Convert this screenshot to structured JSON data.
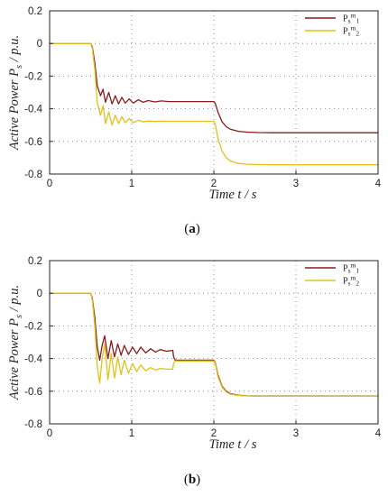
{
  "chart_data": [
    {
      "type": "line",
      "panel_label_text": "a",
      "xlabel": "Time t / s",
      "ylabel_main": "Active Power P",
      "ylabel_sub": "s",
      "ylabel_tail": " / p.u.",
      "xlim": [
        0,
        4
      ],
      "ylim": [
        -0.8,
        0.2
      ],
      "xticks": [
        0,
        1,
        2,
        3,
        4
      ],
      "yticks": [
        0.2,
        0,
        -0.2,
        -0.4,
        -0.6,
        -0.8
      ],
      "xtick_labels": [
        "0",
        "1",
        "2",
        "3",
        "4"
      ],
      "ytick_labels": [
        "0.2",
        "0",
        "-0.2",
        "-0.4",
        "-0.6",
        "-0.8"
      ],
      "grid": "dotted",
      "legend": "top-right",
      "series": [
        {
          "name": "Psm1",
          "legend": {
            "base": "P",
            "sub": "s",
            "sup": "m",
            "idx": "1"
          },
          "color": "#8b1a1a",
          "x": [
            0,
            0.5,
            0.52,
            0.55,
            0.58,
            0.62,
            0.65,
            0.68,
            0.72,
            0.76,
            0.8,
            0.84,
            0.88,
            0.92,
            0.97,
            1.02,
            1.08,
            1.14,
            1.2,
            1.28,
            1.36,
            1.45,
            1.55,
            1.7,
            1.85,
            2.0,
            2.02,
            2.05,
            2.1,
            2.15,
            2.2,
            2.3,
            2.4,
            2.55,
            2.7,
            3.0,
            3.5,
            4.0
          ],
          "y": [
            0,
            0,
            -0.02,
            -0.12,
            -0.26,
            -0.32,
            -0.28,
            -0.36,
            -0.3,
            -0.37,
            -0.32,
            -0.37,
            -0.33,
            -0.365,
            -0.34,
            -0.365,
            -0.345,
            -0.36,
            -0.35,
            -0.358,
            -0.352,
            -0.356,
            -0.356,
            -0.356,
            -0.356,
            -0.356,
            -0.37,
            -0.42,
            -0.48,
            -0.51,
            -0.525,
            -0.538,
            -0.543,
            -0.546,
            -0.547,
            -0.547,
            -0.547,
            -0.547
          ]
        },
        {
          "name": "Psm2",
          "legend": {
            "base": "P",
            "sub": "s",
            "sup": "m",
            "idx": "2"
          },
          "color": "#e0c21a",
          "x": [
            0,
            0.5,
            0.52,
            0.55,
            0.58,
            0.62,
            0.65,
            0.68,
            0.72,
            0.76,
            0.8,
            0.84,
            0.88,
            0.92,
            0.97,
            1.02,
            1.08,
            1.14,
            1.2,
            1.28,
            1.36,
            1.45,
            1.55,
            1.7,
            1.85,
            2.0,
            2.02,
            2.05,
            2.1,
            2.15,
            2.2,
            2.3,
            2.4,
            2.55,
            2.7,
            3.0,
            3.5,
            4.0
          ],
          "y": [
            0,
            0,
            -0.03,
            -0.16,
            -0.36,
            -0.44,
            -0.38,
            -0.49,
            -0.42,
            -0.5,
            -0.44,
            -0.49,
            -0.45,
            -0.485,
            -0.46,
            -0.485,
            -0.47,
            -0.48,
            -0.475,
            -0.478,
            -0.476,
            -0.477,
            -0.477,
            -0.477,
            -0.477,
            -0.477,
            -0.5,
            -0.58,
            -0.66,
            -0.7,
            -0.72,
            -0.735,
            -0.74,
            -0.742,
            -0.743,
            -0.743,
            -0.743,
            -0.743
          ]
        }
      ]
    },
    {
      "type": "line",
      "panel_label_text": "b",
      "xlabel": "Time t / s",
      "ylabel_main": "Active Power P",
      "ylabel_sub": "s",
      "ylabel_tail": " / p.u.",
      "xlim": [
        0,
        4
      ],
      "ylim": [
        -0.8,
        0.2
      ],
      "xticks": [
        0,
        1,
        2,
        3,
        4
      ],
      "yticks": [
        0.2,
        0,
        -0.2,
        -0.4,
        -0.6,
        -0.8
      ],
      "xtick_labels": [
        "0",
        "1",
        "2",
        "3",
        "4"
      ],
      "ytick_labels": [
        "0.2",
        "0",
        "-0.2",
        "-0.4",
        "-0.6",
        "-0.8"
      ],
      "grid": "dotted",
      "legend": "top-right",
      "series": [
        {
          "name": "Psm1",
          "legend": {
            "base": "P",
            "sub": "s",
            "sup": "m",
            "idx": "1"
          },
          "color": "#8b1a1a",
          "x": [
            0,
            0.5,
            0.52,
            0.55,
            0.58,
            0.61,
            0.64,
            0.67,
            0.71,
            0.75,
            0.79,
            0.83,
            0.87,
            0.91,
            0.96,
            1.01,
            1.06,
            1.11,
            1.17,
            1.23,
            1.29,
            1.35,
            1.42,
            1.5,
            1.51,
            1.53,
            1.6,
            1.7,
            1.8,
            1.9,
            2.0,
            2.02,
            2.05,
            2.1,
            2.15,
            2.2,
            2.3,
            2.4,
            2.55,
            2.7,
            3.0,
            3.5,
            4.0
          ],
          "y": [
            0,
            0,
            -0.03,
            -0.15,
            -0.33,
            -0.41,
            -0.32,
            -0.26,
            -0.4,
            -0.29,
            -0.39,
            -0.31,
            -0.38,
            -0.32,
            -0.375,
            -0.33,
            -0.37,
            -0.33,
            -0.365,
            -0.34,
            -0.36,
            -0.345,
            -0.355,
            -0.35,
            -0.39,
            -0.41,
            -0.41,
            -0.41,
            -0.41,
            -0.41,
            -0.41,
            -0.43,
            -0.5,
            -0.57,
            -0.6,
            -0.615,
            -0.625,
            -0.628,
            -0.63,
            -0.63,
            -0.63,
            -0.63,
            -0.63
          ]
        },
        {
          "name": "Psm2",
          "legend": {
            "base": "P",
            "sub": "s",
            "sup": "m",
            "idx": "2"
          },
          "color": "#e0c21a",
          "x": [
            0,
            0.5,
            0.52,
            0.55,
            0.58,
            0.61,
            0.64,
            0.67,
            0.71,
            0.75,
            0.79,
            0.83,
            0.87,
            0.91,
            0.96,
            1.01,
            1.06,
            1.11,
            1.17,
            1.23,
            1.29,
            1.35,
            1.42,
            1.5,
            1.51,
            1.53,
            1.6,
            1.7,
            1.8,
            1.9,
            2.0,
            2.02,
            2.05,
            2.1,
            2.15,
            2.2,
            2.3,
            2.4,
            2.55,
            2.7,
            3.0,
            3.5,
            4.0
          ],
          "y": [
            0,
            0,
            -0.04,
            -0.2,
            -0.45,
            -0.55,
            -0.4,
            -0.31,
            -0.53,
            -0.37,
            -0.52,
            -0.39,
            -0.5,
            -0.41,
            -0.49,
            -0.43,
            -0.48,
            -0.44,
            -0.475,
            -0.455,
            -0.47,
            -0.46,
            -0.465,
            -0.465,
            -0.43,
            -0.415,
            -0.415,
            -0.415,
            -0.415,
            -0.415,
            -0.415,
            -0.435,
            -0.51,
            -0.575,
            -0.605,
            -0.618,
            -0.626,
            -0.629,
            -0.631,
            -0.631,
            -0.631,
            -0.631,
            -0.631
          ]
        }
      ]
    }
  ]
}
